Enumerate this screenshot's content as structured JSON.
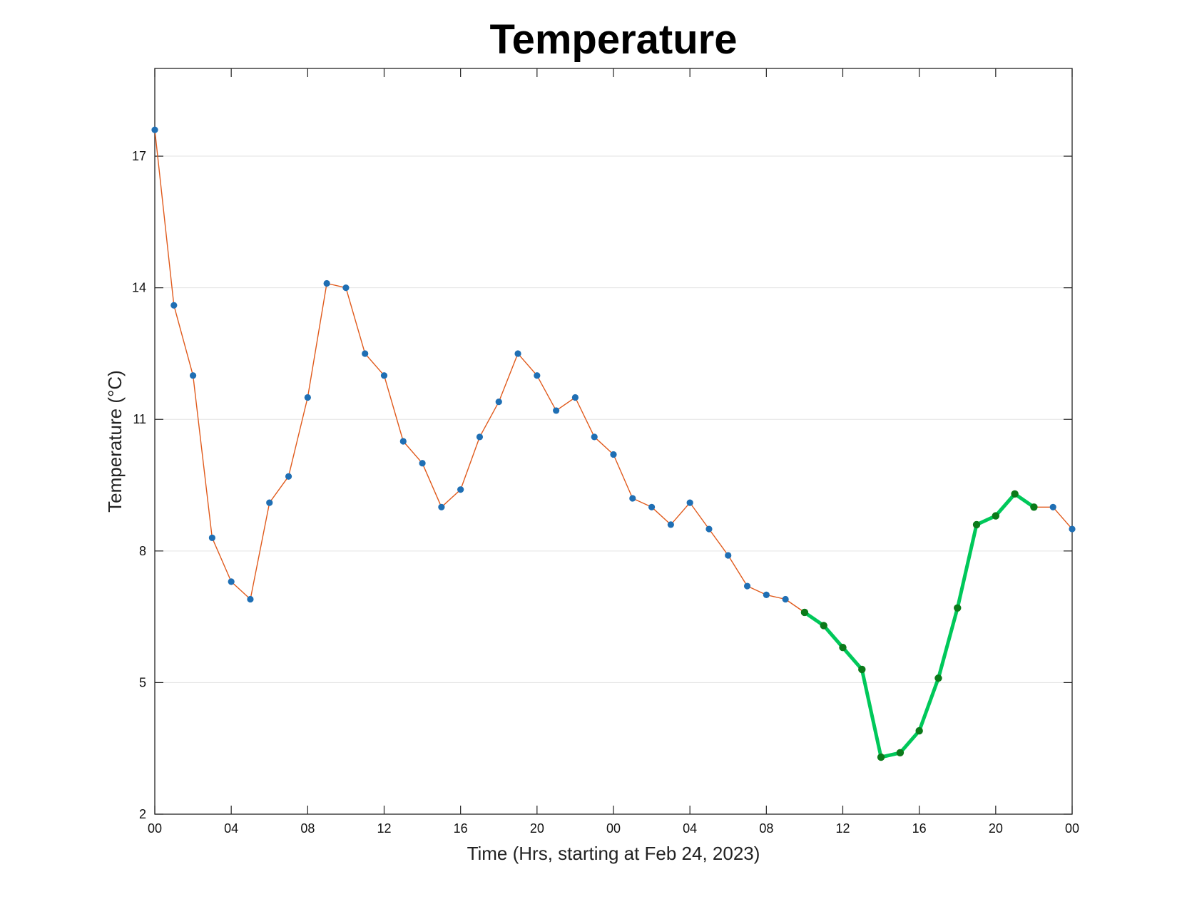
{
  "chart_data": {
    "type": "line",
    "title": "Temperature",
    "xlabel": "Time (Hrs, starting at Feb 24, 2023)",
    "ylabel": "Temperature (°C)",
    "xlim": [
      0,
      48
    ],
    "ylim": [
      2,
      19
    ],
    "xticks": [
      0,
      4,
      8,
      12,
      16,
      20,
      24,
      28,
      32,
      36,
      40,
      44,
      48
    ],
    "xtick_labels": [
      "00",
      "04",
      "08",
      "12",
      "16",
      "20",
      "00",
      "04",
      "08",
      "12",
      "16",
      "20",
      "00"
    ],
    "yticks": [
      2,
      5,
      8,
      11,
      14,
      17
    ],
    "ytick_labels": [
      "2",
      "5",
      "8",
      "11",
      "14",
      "17"
    ],
    "grid": "horizontal",
    "legend": "none",
    "colors": {
      "observed_line": "#e05a1c",
      "observed_marker": "#1f6fb4",
      "highlight_line": "#00c85a",
      "highlight_marker": "#0b7a1a",
      "grid": "#e3e3e3",
      "axes": "#222222"
    },
    "series": [
      {
        "x": [
          0,
          1,
          2,
          3,
          4,
          5,
          6,
          7,
          8,
          9,
          10,
          11,
          12,
          13,
          14,
          15,
          16,
          17,
          18,
          19,
          20,
          21,
          22,
          23,
          24,
          25,
          26,
          27,
          28,
          29,
          30,
          31,
          32,
          33,
          34,
          35,
          36,
          37,
          38,
          39,
          40,
          41,
          42,
          43,
          44,
          45,
          46,
          47,
          48
        ],
        "values": [
          17.6,
          13.6,
          12.0,
          8.3,
          7.3,
          6.9,
          9.1,
          9.7,
          11.5,
          14.1,
          14.0,
          12.5,
          12.0,
          10.5,
          10.0,
          9.0,
          9.4,
          10.6,
          11.4,
          12.5,
          12.0,
          11.2,
          11.5,
          10.6,
          10.2,
          9.2,
          9.0,
          8.6,
          9.1,
          8.5,
          7.9,
          7.2,
          7.0,
          6.9,
          6.6,
          6.3,
          5.8,
          5.3,
          3.3,
          3.4,
          3.9,
          5.1,
          6.7,
          8.6,
          8.8,
          9.3,
          9.0,
          9.0,
          8.5
        ]
      },
      {
        "x": [
          34,
          35,
          36,
          37,
          38,
          39,
          40,
          41,
          42,
          43,
          44,
          45,
          46
        ],
        "values": [
          6.6,
          6.3,
          5.8,
          5.3,
          3.3,
          3.4,
          3.9,
          5.1,
          6.7,
          8.6,
          8.8,
          9.3,
          9.0
        ]
      }
    ]
  }
}
